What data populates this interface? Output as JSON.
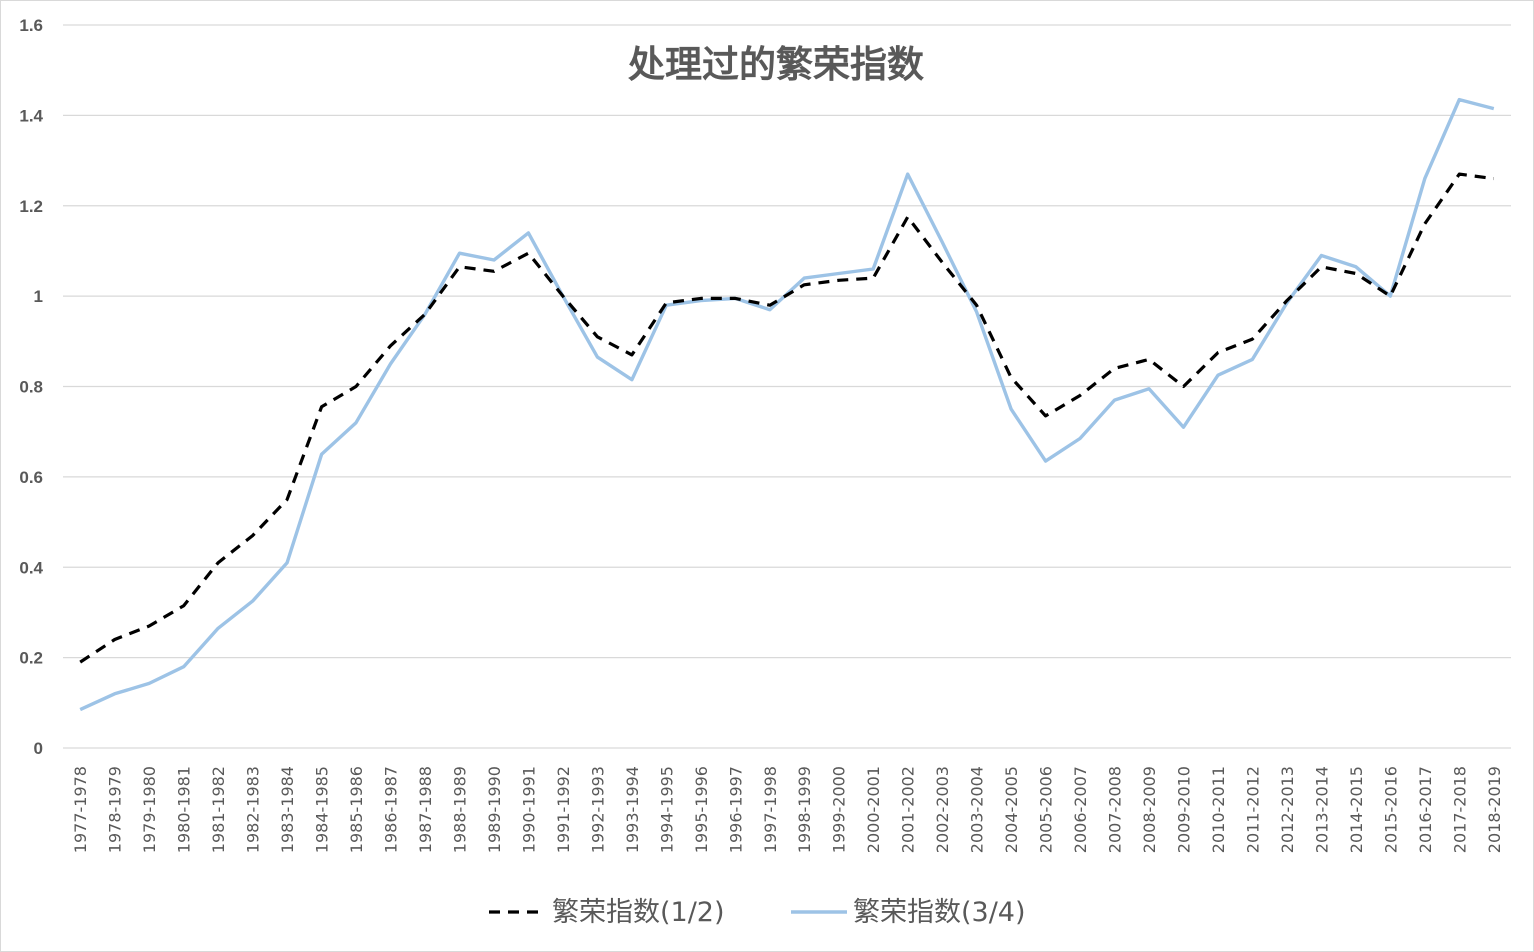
{
  "chart_data": {
    "type": "line",
    "title": "处理过的繁荣指数",
    "ylim": [
      0,
      1.6
    ],
    "yticks": [
      "0",
      "0.2",
      "0.4",
      "0.6",
      "0.8",
      "1",
      "1.2",
      "1.4",
      "1.6"
    ],
    "grid": true,
    "legend_position": "bottom",
    "categories": [
      "1977-1978",
      "1978-1979",
      "1979-1980",
      "1980-1981",
      "1981-1982",
      "1982-1983",
      "1983-1984",
      "1984-1985",
      "1985-1986",
      "1986-1987",
      "1987-1988",
      "1988-1989",
      "1989-1990",
      "1990-1991",
      "1991-1992",
      "1992-1993",
      "1993-1994",
      "1994-1995",
      "1995-1996",
      "1996-1997",
      "1997-1998",
      "1998-1999",
      "1999-2000",
      "2000-2001",
      "2001-2002",
      "2002-2003",
      "2003-2004",
      "2004-2005",
      "2005-2006",
      "2006-2007",
      "2007-2008",
      "2008-2009",
      "2009-2010",
      "2010-2011",
      "2011-2012",
      "2012-2013",
      "2013-2014",
      "2014-2015",
      "2015-2016",
      "2016-2017",
      "2017-2018",
      "2018-2019"
    ],
    "series": [
      {
        "name": "繁荣指数(1/2)",
        "color": "#000000",
        "style": "dashed",
        "values": [
          0.19,
          0.24,
          0.27,
          0.315,
          0.41,
          0.47,
          0.55,
          0.755,
          0.8,
          0.89,
          0.96,
          1.065,
          1.055,
          1.095,
          1.0,
          0.91,
          0.87,
          0.985,
          0.995,
          0.995,
          0.98,
          1.025,
          1.035,
          1.04,
          1.175,
          1.075,
          0.98,
          0.82,
          0.735,
          0.78,
          0.84,
          0.86,
          0.8,
          0.875,
          0.905,
          0.99,
          1.065,
          1.05,
          1.0,
          1.16,
          1.27,
          1.26
        ]
      },
      {
        "name": "繁荣指数(3/4)",
        "color": "#9DC3E6",
        "style": "solid",
        "values": [
          0.085,
          0.12,
          0.143,
          0.18,
          0.265,
          0.325,
          0.41,
          0.65,
          0.72,
          0.85,
          0.96,
          1.095,
          1.08,
          1.14,
          1.0,
          0.865,
          0.815,
          0.98,
          0.99,
          0.995,
          0.97,
          1.04,
          1.05,
          1.06,
          1.27,
          1.12,
          0.965,
          0.75,
          0.635,
          0.685,
          0.77,
          0.795,
          0.71,
          0.825,
          0.86,
          0.985,
          1.09,
          1.065,
          1.0,
          1.26,
          1.435,
          1.415
        ]
      }
    ]
  }
}
